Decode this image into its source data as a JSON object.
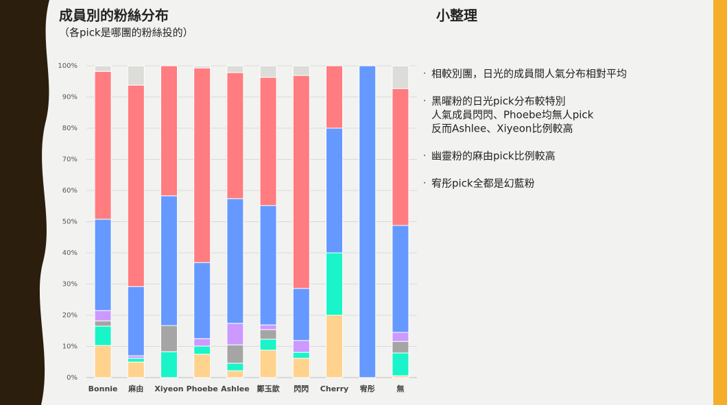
{
  "slide": {
    "title": "成員別的粉絲分布",
    "subtitle": "（各pick是哪團的粉絲投的）",
    "notes_title": "小整理",
    "notes": [
      [
        "相較別團，日光的成員間人氣分布相對平均"
      ],
      [
        "黑曜粉的日光pick分布較特別",
        "人氣成員閃閃、Phoebe均無人pick",
        "反而Ashlee、Xiyeon比例較高"
      ],
      [
        "幽靈粉的麻由pick比例較高"
      ],
      [
        "宥彤pick全都是幻藍粉"
      ]
    ]
  },
  "chart_data": {
    "type": "stacked_bar",
    "categories": [
      "Bonnie",
      "麻由",
      "Xiyeon",
      "Phoebe",
      "Ashlee",
      "鄭玉歆",
      "閃閃",
      "Cherry",
      "宥彤",
      "無"
    ],
    "series": [
      {
        "color": "#ffd28e",
        "values": [
          10.3,
          5.0,
          0,
          7.5,
          2.2,
          8.8,
          6.2,
          20,
          0,
          0.6
        ]
      },
      {
        "color": "#19f5c8",
        "values": [
          6.2,
          1.2,
          8.3,
          2.6,
          2.4,
          3.5,
          1.9,
          20,
          0,
          7.3
        ]
      },
      {
        "color": "#a5a5a5",
        "values": [
          1.7,
          0,
          8.4,
          0,
          5.9,
          3.1,
          0,
          0,
          0,
          3.7
        ]
      },
      {
        "color": "#cc99ff",
        "values": [
          3.3,
          0.8,
          0,
          2.4,
          6.9,
          1.5,
          3.8,
          0,
          0,
          2.9
        ]
      },
      {
        "color": "#6699ff",
        "values": [
          29.3,
          22.2,
          41.6,
          24.4,
          40,
          38.3,
          16.7,
          40,
          100,
          34.3
        ]
      },
      {
        "color": "#ff7c80",
        "values": [
          47.4,
          64.6,
          41.7,
          62.4,
          40.4,
          41.1,
          68.3,
          20,
          0,
          43.9
        ]
      },
      {
        "color": "#dcdcd8",
        "values": [
          1.8,
          6.2,
          0,
          0.7,
          2.2,
          3.7,
          3.1,
          0,
          0,
          7.3
        ]
      }
    ],
    "ylim": [
      0,
      100
    ],
    "yticks": [
      {
        "value": 0,
        "label": "0%"
      },
      {
        "value": 10,
        "label": "10%"
      },
      {
        "value": 20,
        "label": "20%"
      },
      {
        "value": 30,
        "label": "30%"
      },
      {
        "value": 40,
        "label": "40%"
      },
      {
        "value": 50,
        "label": "50%"
      },
      {
        "value": 60,
        "label": "60%"
      },
      {
        "value": 70,
        "label": "70%"
      },
      {
        "value": 80,
        "label": "80%"
      },
      {
        "value": 90,
        "label": "90%"
      },
      {
        "value": 100,
        "label": "100%"
      }
    ],
    "grid": true
  }
}
